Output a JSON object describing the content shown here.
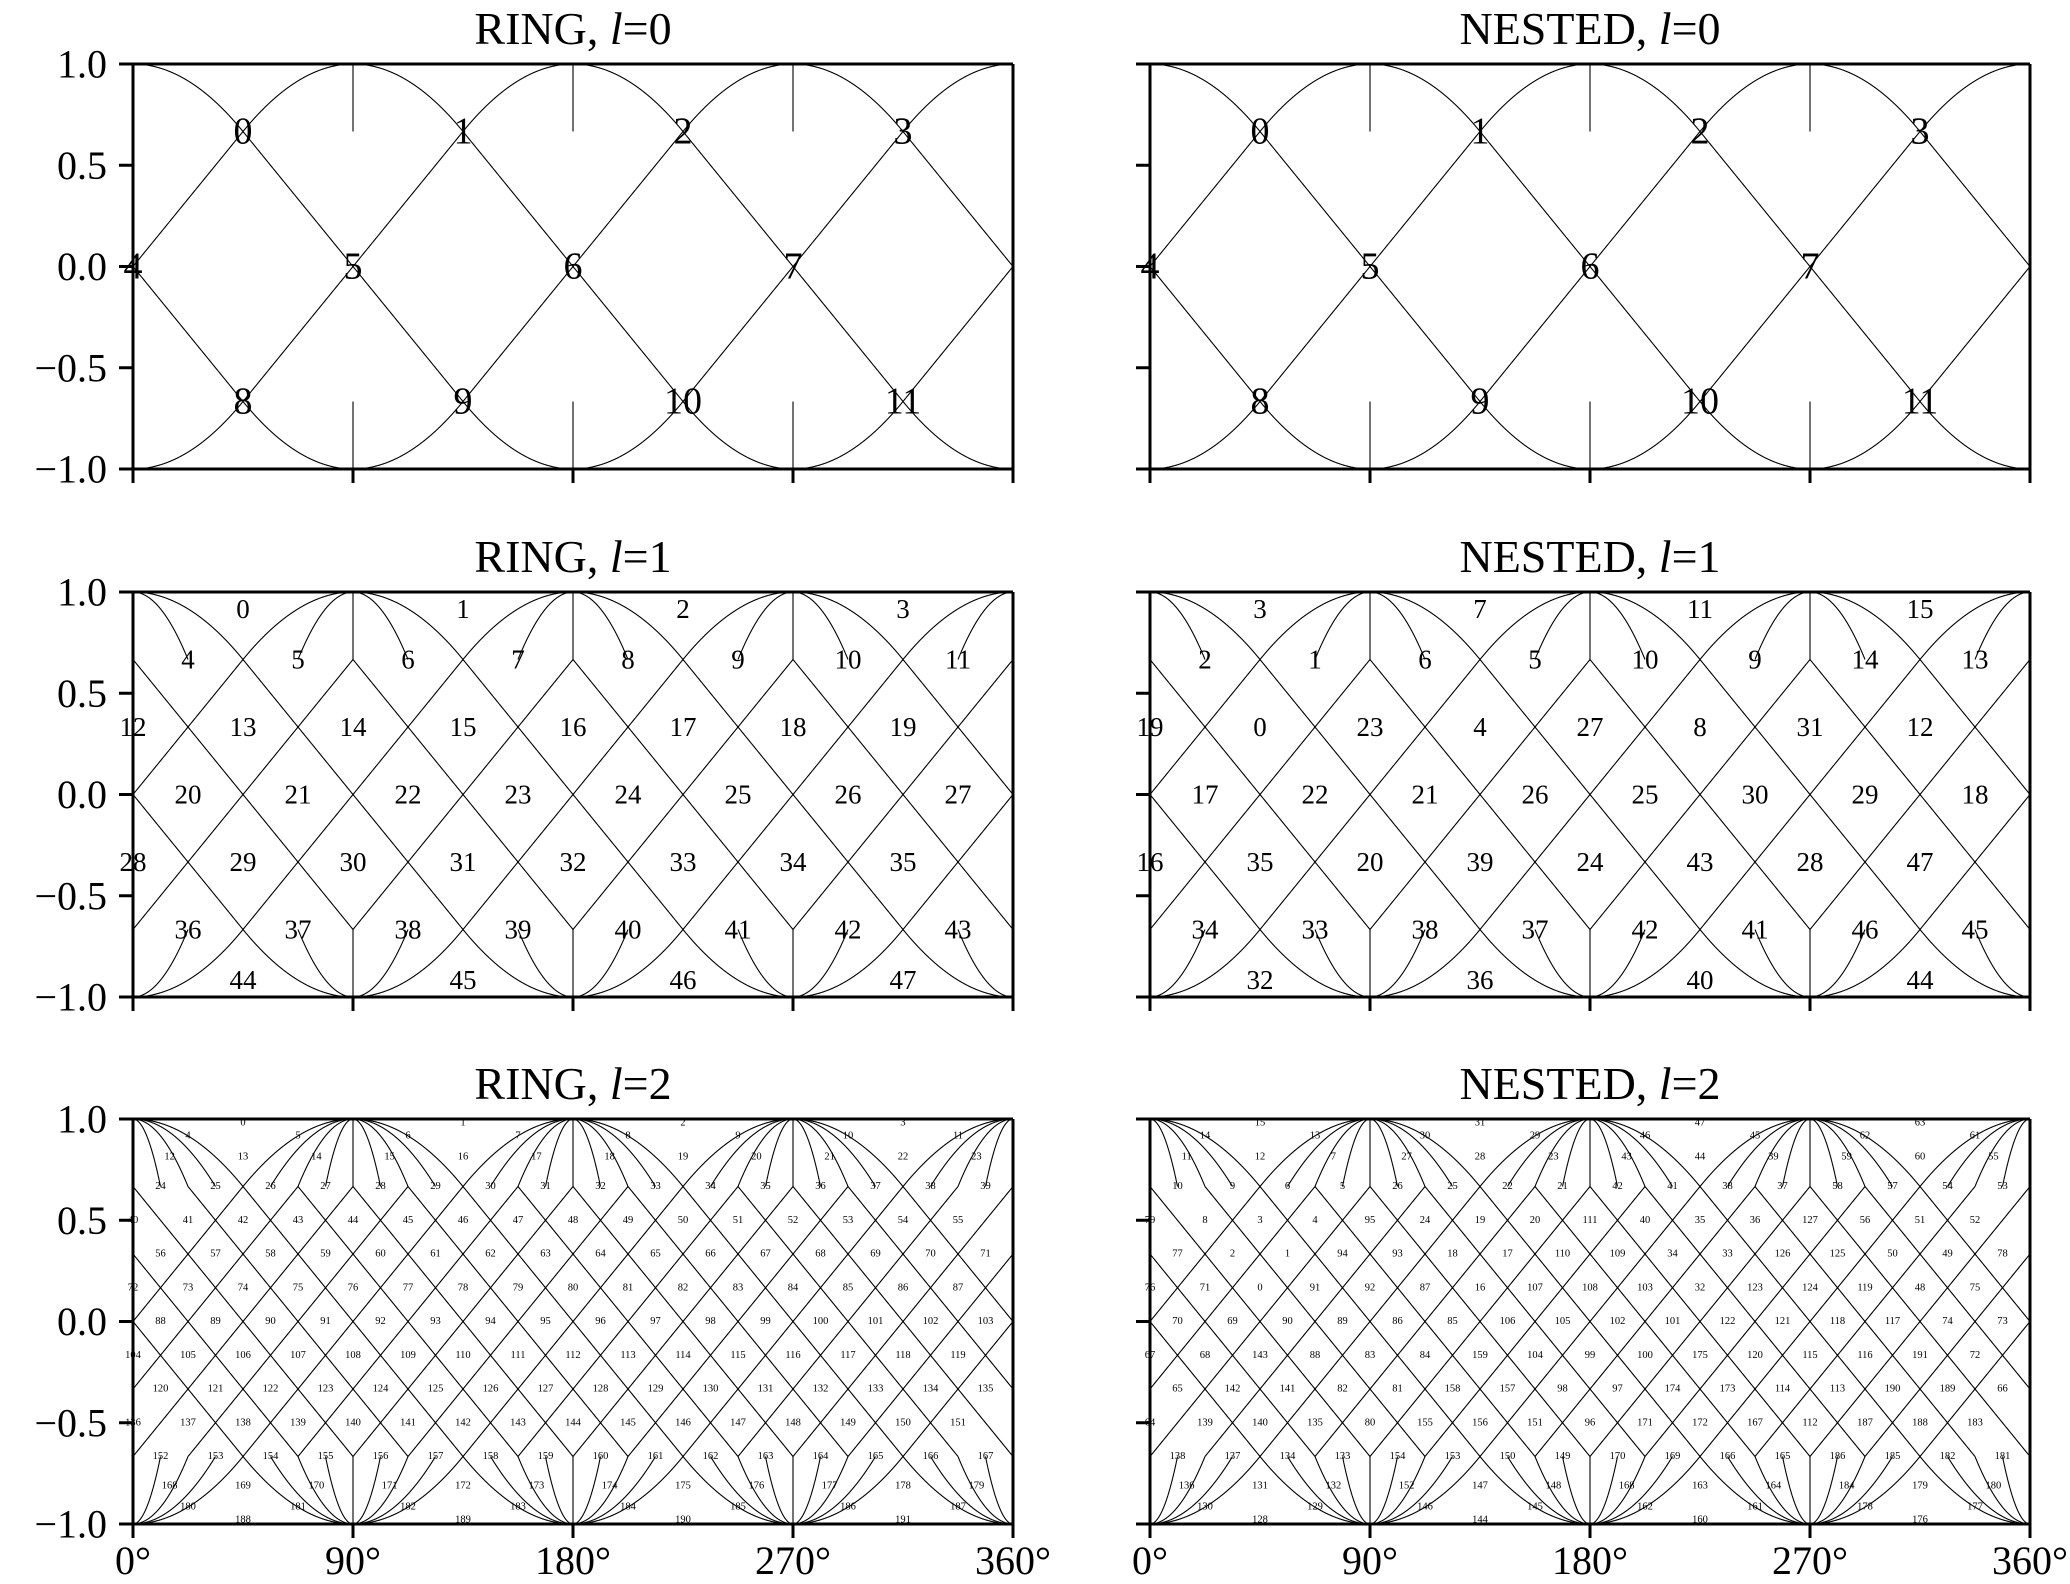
{
  "panels": [
    {
      "id": "ring-l0",
      "scheme": "RING",
      "level": 0,
      "title_prefix": "RING, ",
      "title_var": "l",
      "title_suffix": "=0"
    },
    {
      "id": "nested-l0",
      "scheme": "NESTED",
      "level": 0,
      "title_prefix": "NESTED, ",
      "title_var": "l",
      "title_suffix": "=0"
    },
    {
      "id": "ring-l1",
      "scheme": "RING",
      "level": 1,
      "title_prefix": "RING, ",
      "title_var": "l",
      "title_suffix": "=1"
    },
    {
      "id": "nested-l1",
      "scheme": "NESTED",
      "level": 1,
      "title_prefix": "NESTED, ",
      "title_var": "l",
      "title_suffix": "=1"
    },
    {
      "id": "ring-l2",
      "scheme": "RING",
      "level": 2,
      "title_prefix": "RING, ",
      "title_var": "l",
      "title_suffix": "=2"
    },
    {
      "id": "nested-l2",
      "scheme": "NESTED",
      "level": 2,
      "title_prefix": "NESTED, ",
      "title_var": "l",
      "title_suffix": "=2"
    }
  ],
  "y_ticks": [
    "1.0",
    "0.5",
    "0.0",
    "−0.5",
    "−1.0"
  ],
  "x_ticks": [
    "0°",
    "90°",
    "180°",
    "270°",
    "360°"
  ]
}
